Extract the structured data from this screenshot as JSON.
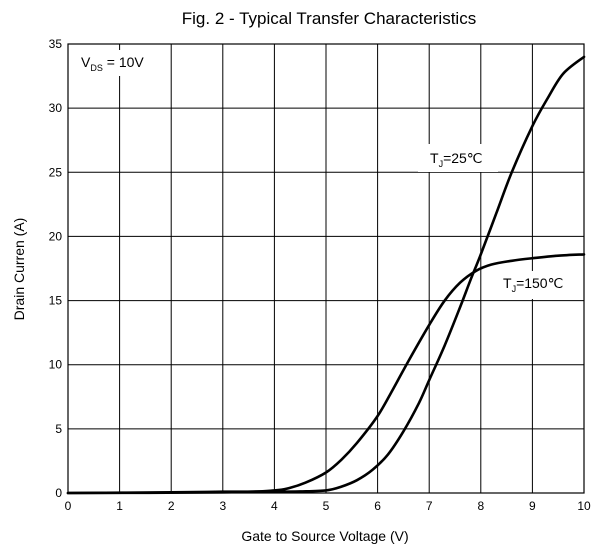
{
  "chart_data": {
    "type": "line",
    "title": "Fig. 2 - Typical Transfer Characteristics",
    "xlabel": "Gate to Source Voltage (V)",
    "ylabel": "Drain Curren (A)",
    "xlim": [
      0,
      10
    ],
    "ylim": [
      0,
      35
    ],
    "grid": true,
    "x_ticks": [
      "0",
      "1",
      "2",
      "3",
      "4",
      "5",
      "6",
      "7",
      "8",
      "9",
      "10"
    ],
    "y_ticks": [
      "0",
      "5",
      "10",
      "15",
      "20",
      "25",
      "30",
      "35"
    ],
    "annotations": [
      {
        "main": "V",
        "sub": "DS",
        "rest": " = 10V"
      },
      {
        "main": "T",
        "sub": "J",
        "rest": "=25℃"
      },
      {
        "main": "T",
        "sub": "J",
        "rest": "=150℃"
      }
    ],
    "series": [
      {
        "name": "TJ=25℃",
        "x": [
          0,
          2,
          3,
          4,
          4.5,
          5,
          5.3,
          5.6,
          5.9,
          6.2,
          6.5,
          6.8,
          7,
          7.3,
          7.6,
          7.8,
          8,
          8.3,
          8.6,
          9,
          9.3,
          9.6,
          10
        ],
        "y": [
          0,
          0.05,
          0.1,
          0.1,
          0.12,
          0.2,
          0.5,
          1.0,
          1.8,
          3.0,
          4.8,
          7.0,
          8.8,
          11.5,
          14.5,
          16.6,
          18.6,
          21.8,
          25.0,
          28.6,
          30.8,
          32.7,
          34.0
        ]
      },
      {
        "name": "TJ=150℃",
        "x": [
          0,
          3,
          4,
          4.3,
          4.6,
          5,
          5.3,
          5.6,
          6,
          6.3,
          6.6,
          7,
          7.3,
          7.6,
          7.9,
          8.2,
          8.6,
          9,
          9.5,
          10
        ],
        "y": [
          0,
          0.05,
          0.2,
          0.4,
          0.8,
          1.6,
          2.6,
          3.9,
          6.0,
          8.1,
          10.3,
          13.1,
          15.0,
          16.4,
          17.3,
          17.8,
          18.1,
          18.3,
          18.5,
          18.6
        ]
      }
    ]
  }
}
